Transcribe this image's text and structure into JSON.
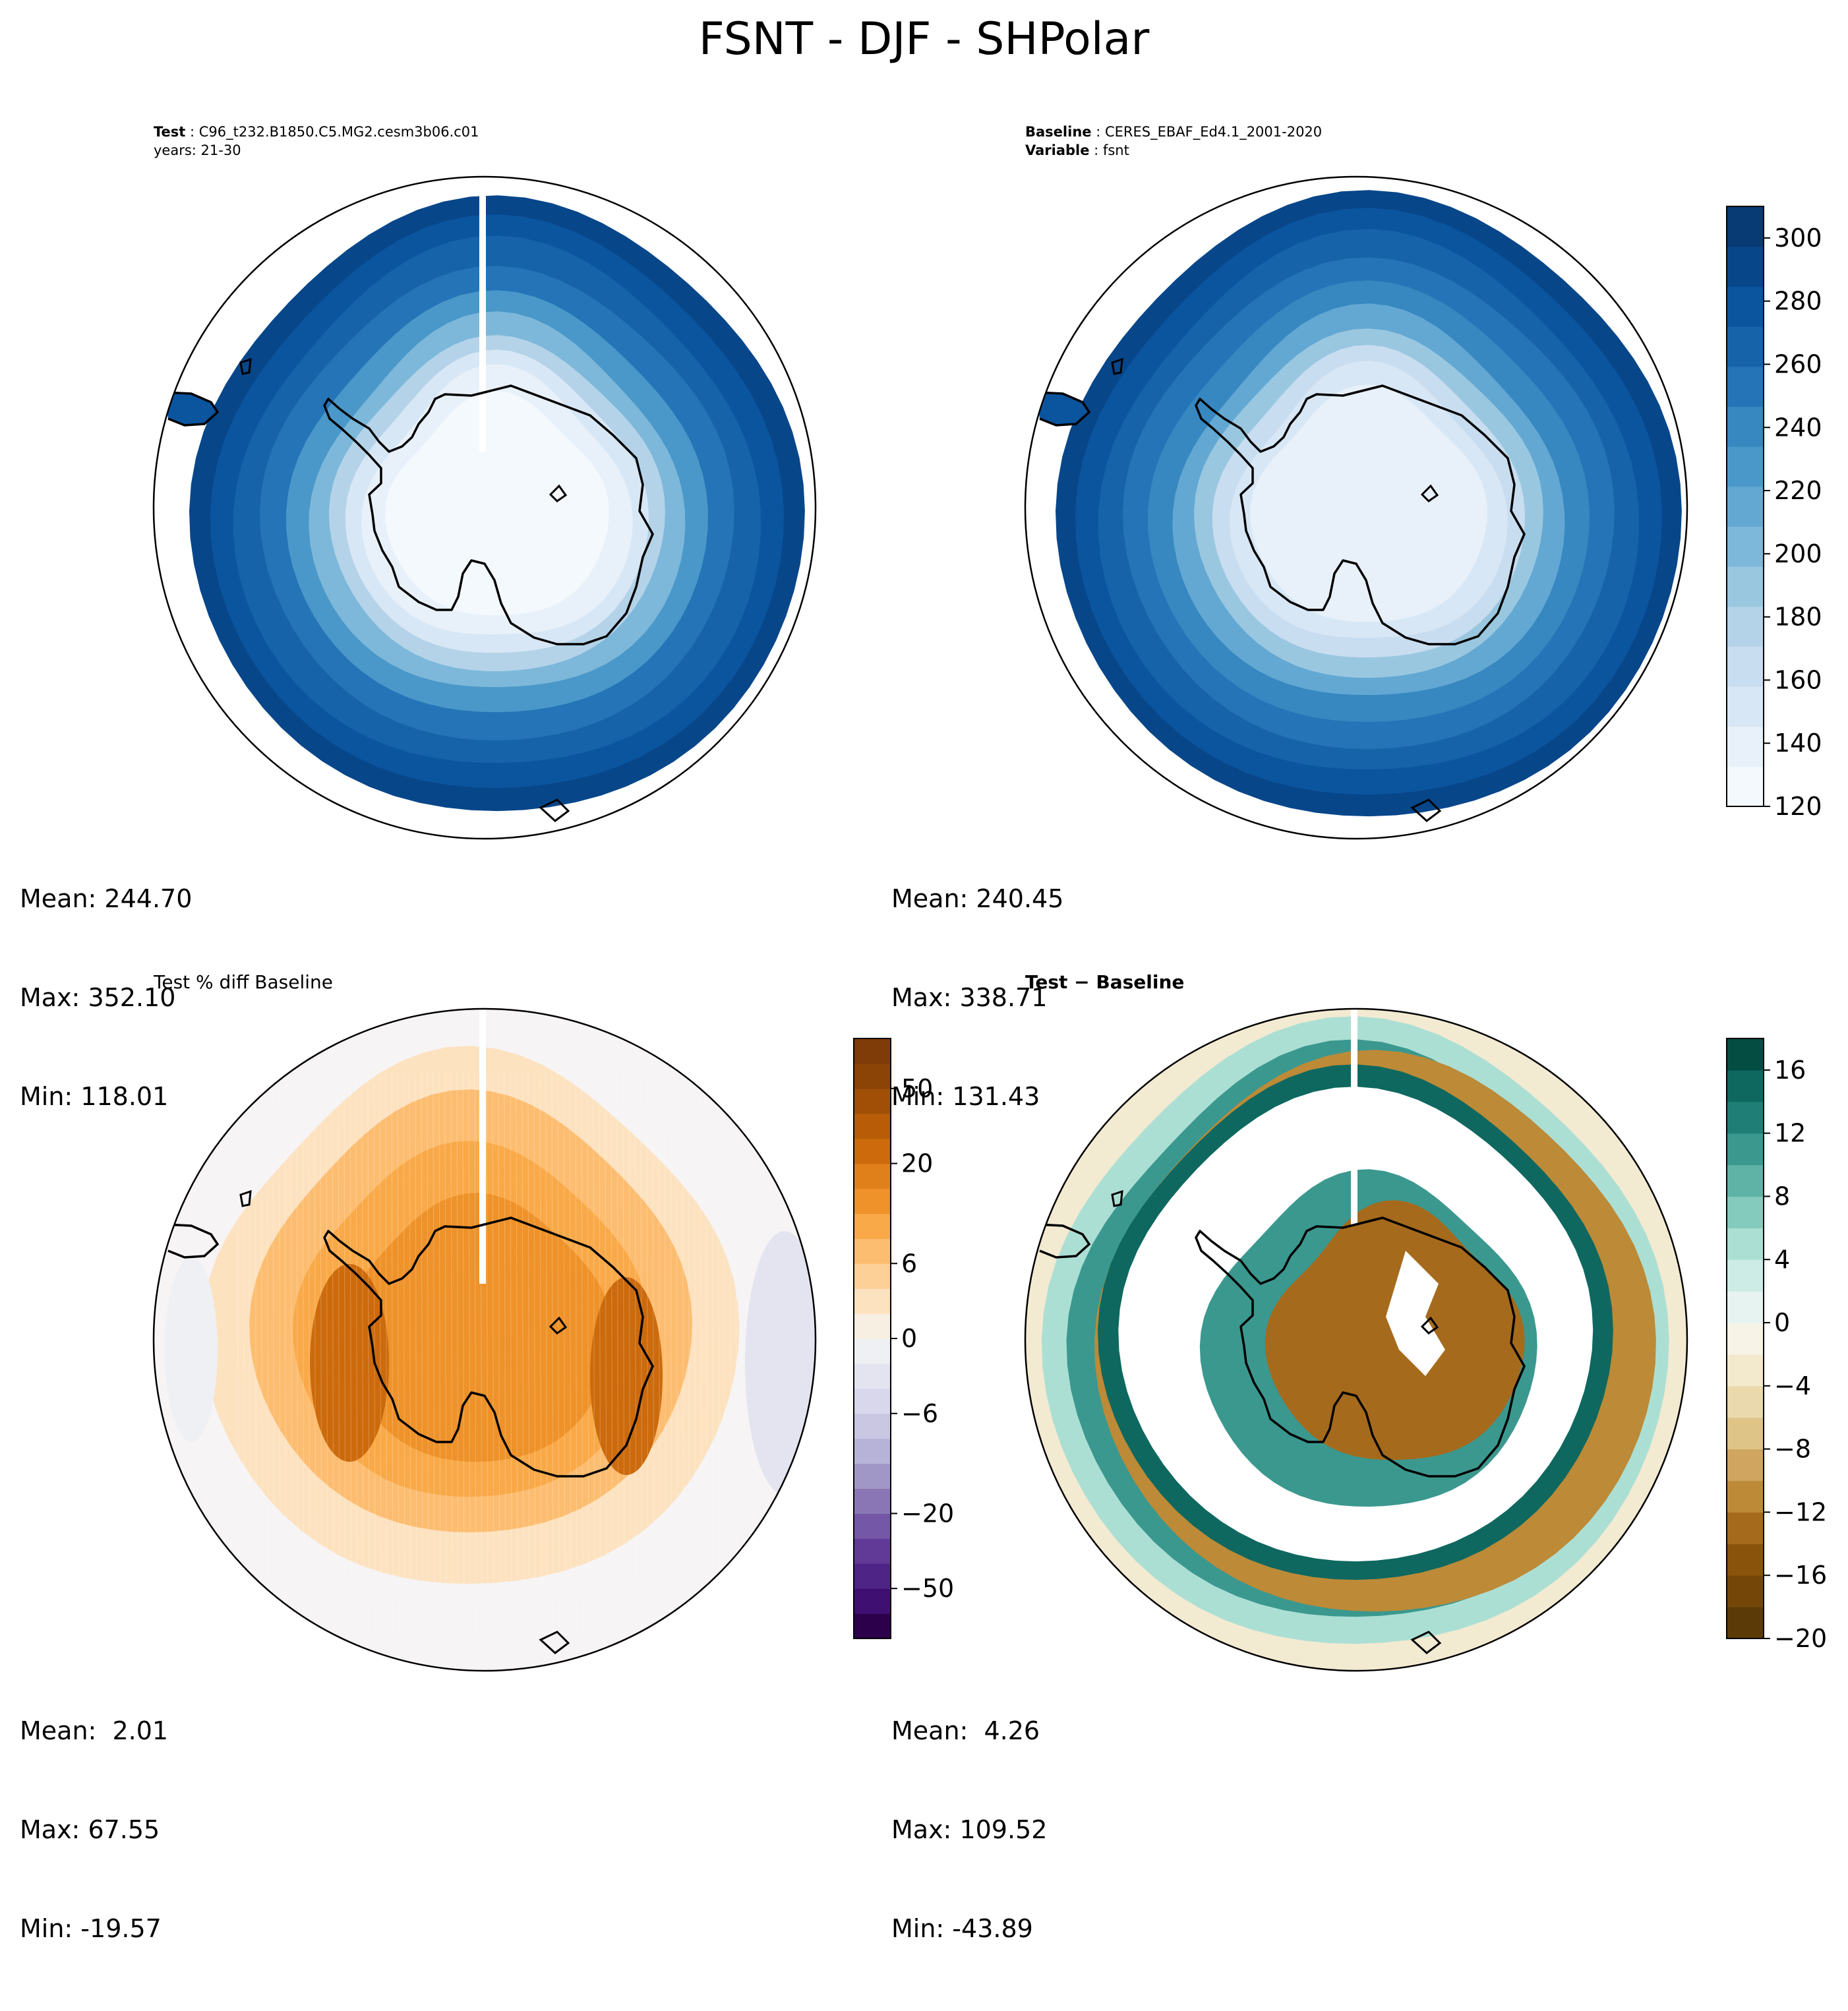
{
  "figure_title": "FSNT - DJF - SHPolar",
  "panels": {
    "test": {
      "label": "Test",
      "name": "C96_t232.B1850.C5.MG2.cesm3b06.c01",
      "years_label": "years: 21-30",
      "stats": {
        "mean": "Mean: 244.70",
        "max": "Max: 352.10",
        "min": "Min: 118.01"
      }
    },
    "baseline": {
      "label": "Baseline",
      "name": "CERES_EBAF_Ed4.1_2001-2020",
      "variable_label": "Variable",
      "variable": "fsnt",
      "stats": {
        "mean": "Mean: 240.45",
        "max": "Max: 338.71",
        "min": "Min: 131.43"
      }
    },
    "pct_diff": {
      "title": "Test % diff Baseline",
      "stats": {
        "mean": "Mean:  2.01",
        "max": "Max: 67.55",
        "min": "Min: -19.57"
      }
    },
    "diff": {
      "title": "Test − Baseline",
      "stats": {
        "mean": "Mean:  4.26",
        "max": "Max: 109.52",
        "min": "Min: -43.89"
      }
    }
  },
  "colorbars": {
    "main": {
      "colormap": "Blues",
      "range": [
        120,
        310
      ],
      "ticks": [
        120,
        140,
        160,
        180,
        200,
        220,
        240,
        260,
        280,
        300
      ],
      "tick_labels": [
        "120",
        "140",
        "160",
        "180",
        "200",
        "220",
        "240",
        "260",
        "280",
        "300"
      ],
      "colors": [
        "#f4f9fe",
        "#e8f1fa",
        "#d8e7f5",
        "#c9ddf0",
        "#b4d3e9",
        "#9ac7e0",
        "#7db8da",
        "#62a8d3",
        "#4a98c9",
        "#3787c0",
        "#2474b7",
        "#1663aa",
        "#0b559f",
        "#08468a",
        "#083a73"
      ]
    },
    "pct_diff": {
      "colormap": "PuOr_r",
      "levels": [
        -100,
        -75,
        -50,
        -40,
        -30,
        -20,
        -15,
        -10,
        -8,
        -6,
        -4,
        -2,
        0,
        2,
        4,
        6,
        8,
        10,
        15,
        20,
        30,
        40,
        50,
        75,
        100
      ],
      "tick_labels": [
        "−50",
        "−20",
        "−6",
        "0",
        "6",
        "20",
        "50"
      ],
      "colors": [
        "#2d004b",
        "#3f0f72",
        "#4f2487",
        "#603a96",
        "#7457a7",
        "#8a76b5",
        "#a197c7",
        "#b7b3d8",
        "#c9c7e2",
        "#d8d7eb",
        "#e4e4f1",
        "#eef0f4",
        "#f8efe3",
        "#fde2c0",
        "#fdd098",
        "#fdbd70",
        "#f9a948",
        "#ee9229",
        "#e0801b",
        "#cc6a0c",
        "#b85c08",
        "#a14f07",
        "#8c4306",
        "#7f3b08"
      ]
    },
    "diff": {
      "colormap": "BrBG",
      "levels": [
        -20,
        -18,
        -16,
        -14,
        -12,
        -10,
        -8,
        -6,
        -4,
        -2,
        0,
        2,
        4,
        6,
        8,
        10,
        12,
        14,
        16,
        18
      ],
      "tick_labels": [
        "−20",
        "−16",
        "−12",
        "−8",
        "−4",
        "0",
        "4",
        "8",
        "12",
        "16"
      ],
      "colors": [
        "#5c3a07",
        "#744709",
        "#8a530c",
        "#a56a1c",
        "#bd8a37",
        "#cfa560",
        "#dfc488",
        "#ead9ad",
        "#f3e9cd",
        "#f7f3e6",
        "#e6f3f0",
        "#cdece5",
        "#acdfd4",
        "#85cbbd",
        "#5eb2a6",
        "#3b988f",
        "#1f7f76",
        "#0e685f",
        "#034d43"
      ]
    }
  }
}
